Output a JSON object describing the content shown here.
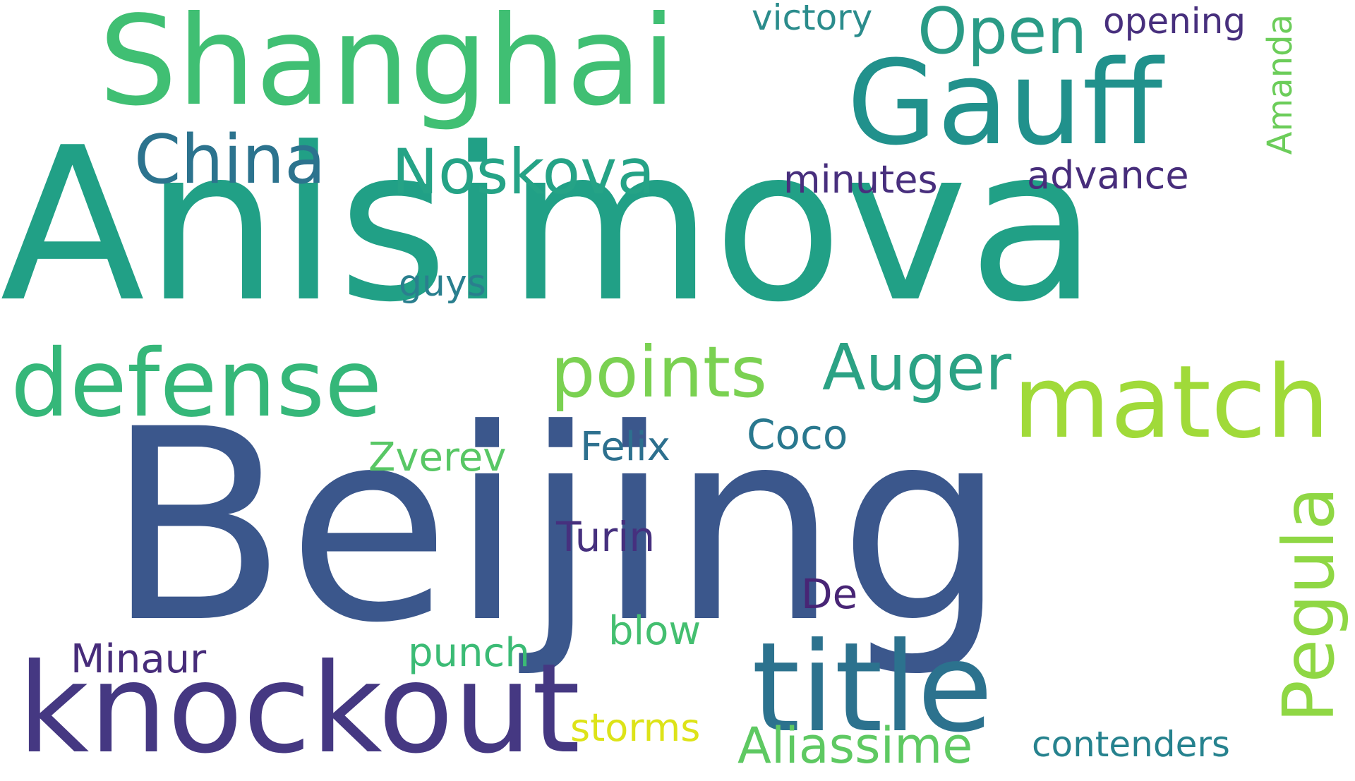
{
  "words": [
    {
      "text": "Anisimova",
      "color": "#21a086"
    },
    {
      "text": "Beijing",
      "color": "#3b578c"
    },
    {
      "text": "Shanghai",
      "color": "#40bf73"
    },
    {
      "text": "Gauff",
      "color": "#21918c"
    },
    {
      "text": "Open",
      "color": "#2a9b86"
    },
    {
      "text": "victory",
      "color": "#2b8c8c"
    },
    {
      "text": "opening",
      "color": "#472f7d"
    },
    {
      "text": "Amanda",
      "color": "#6ccd5a"
    },
    {
      "text": "China",
      "color": "#2c738e"
    },
    {
      "text": "Noskova",
      "color": "#25a386"
    },
    {
      "text": "minutes",
      "color": "#482f7d"
    },
    {
      "text": "advance",
      "color": "#472d7b"
    },
    {
      "text": "guys",
      "color": "#2a7f8e"
    },
    {
      "text": "defense",
      "color": "#35b779"
    },
    {
      "text": "points",
      "color": "#7ad151"
    },
    {
      "text": "Auger",
      "color": "#2ba284"
    },
    {
      "text": "match",
      "color": "#a0da39"
    },
    {
      "text": "Coco",
      "color": "#29788e"
    },
    {
      "text": "Felix",
      "color": "#2d708e"
    },
    {
      "text": "Zverev",
      "color": "#58c765"
    },
    {
      "text": "Pegula",
      "color": "#8fd744"
    },
    {
      "text": "Turin",
      "color": "#46307e"
    },
    {
      "text": "De",
      "color": "#482575"
    },
    {
      "text": "Minaur",
      "color": "#472c7a"
    },
    {
      "text": "blow",
      "color": "#44bf70"
    },
    {
      "text": "punch",
      "color": "#3bbb75"
    },
    {
      "text": "knockout",
      "color": "#453882"
    },
    {
      "text": "title",
      "color": "#2c728e"
    },
    {
      "text": "storms",
      "color": "#dde318"
    },
    {
      "text": "Aliassime",
      "color": "#5ec962"
    },
    {
      "text": "contenders",
      "color": "#26828e"
    }
  ]
}
